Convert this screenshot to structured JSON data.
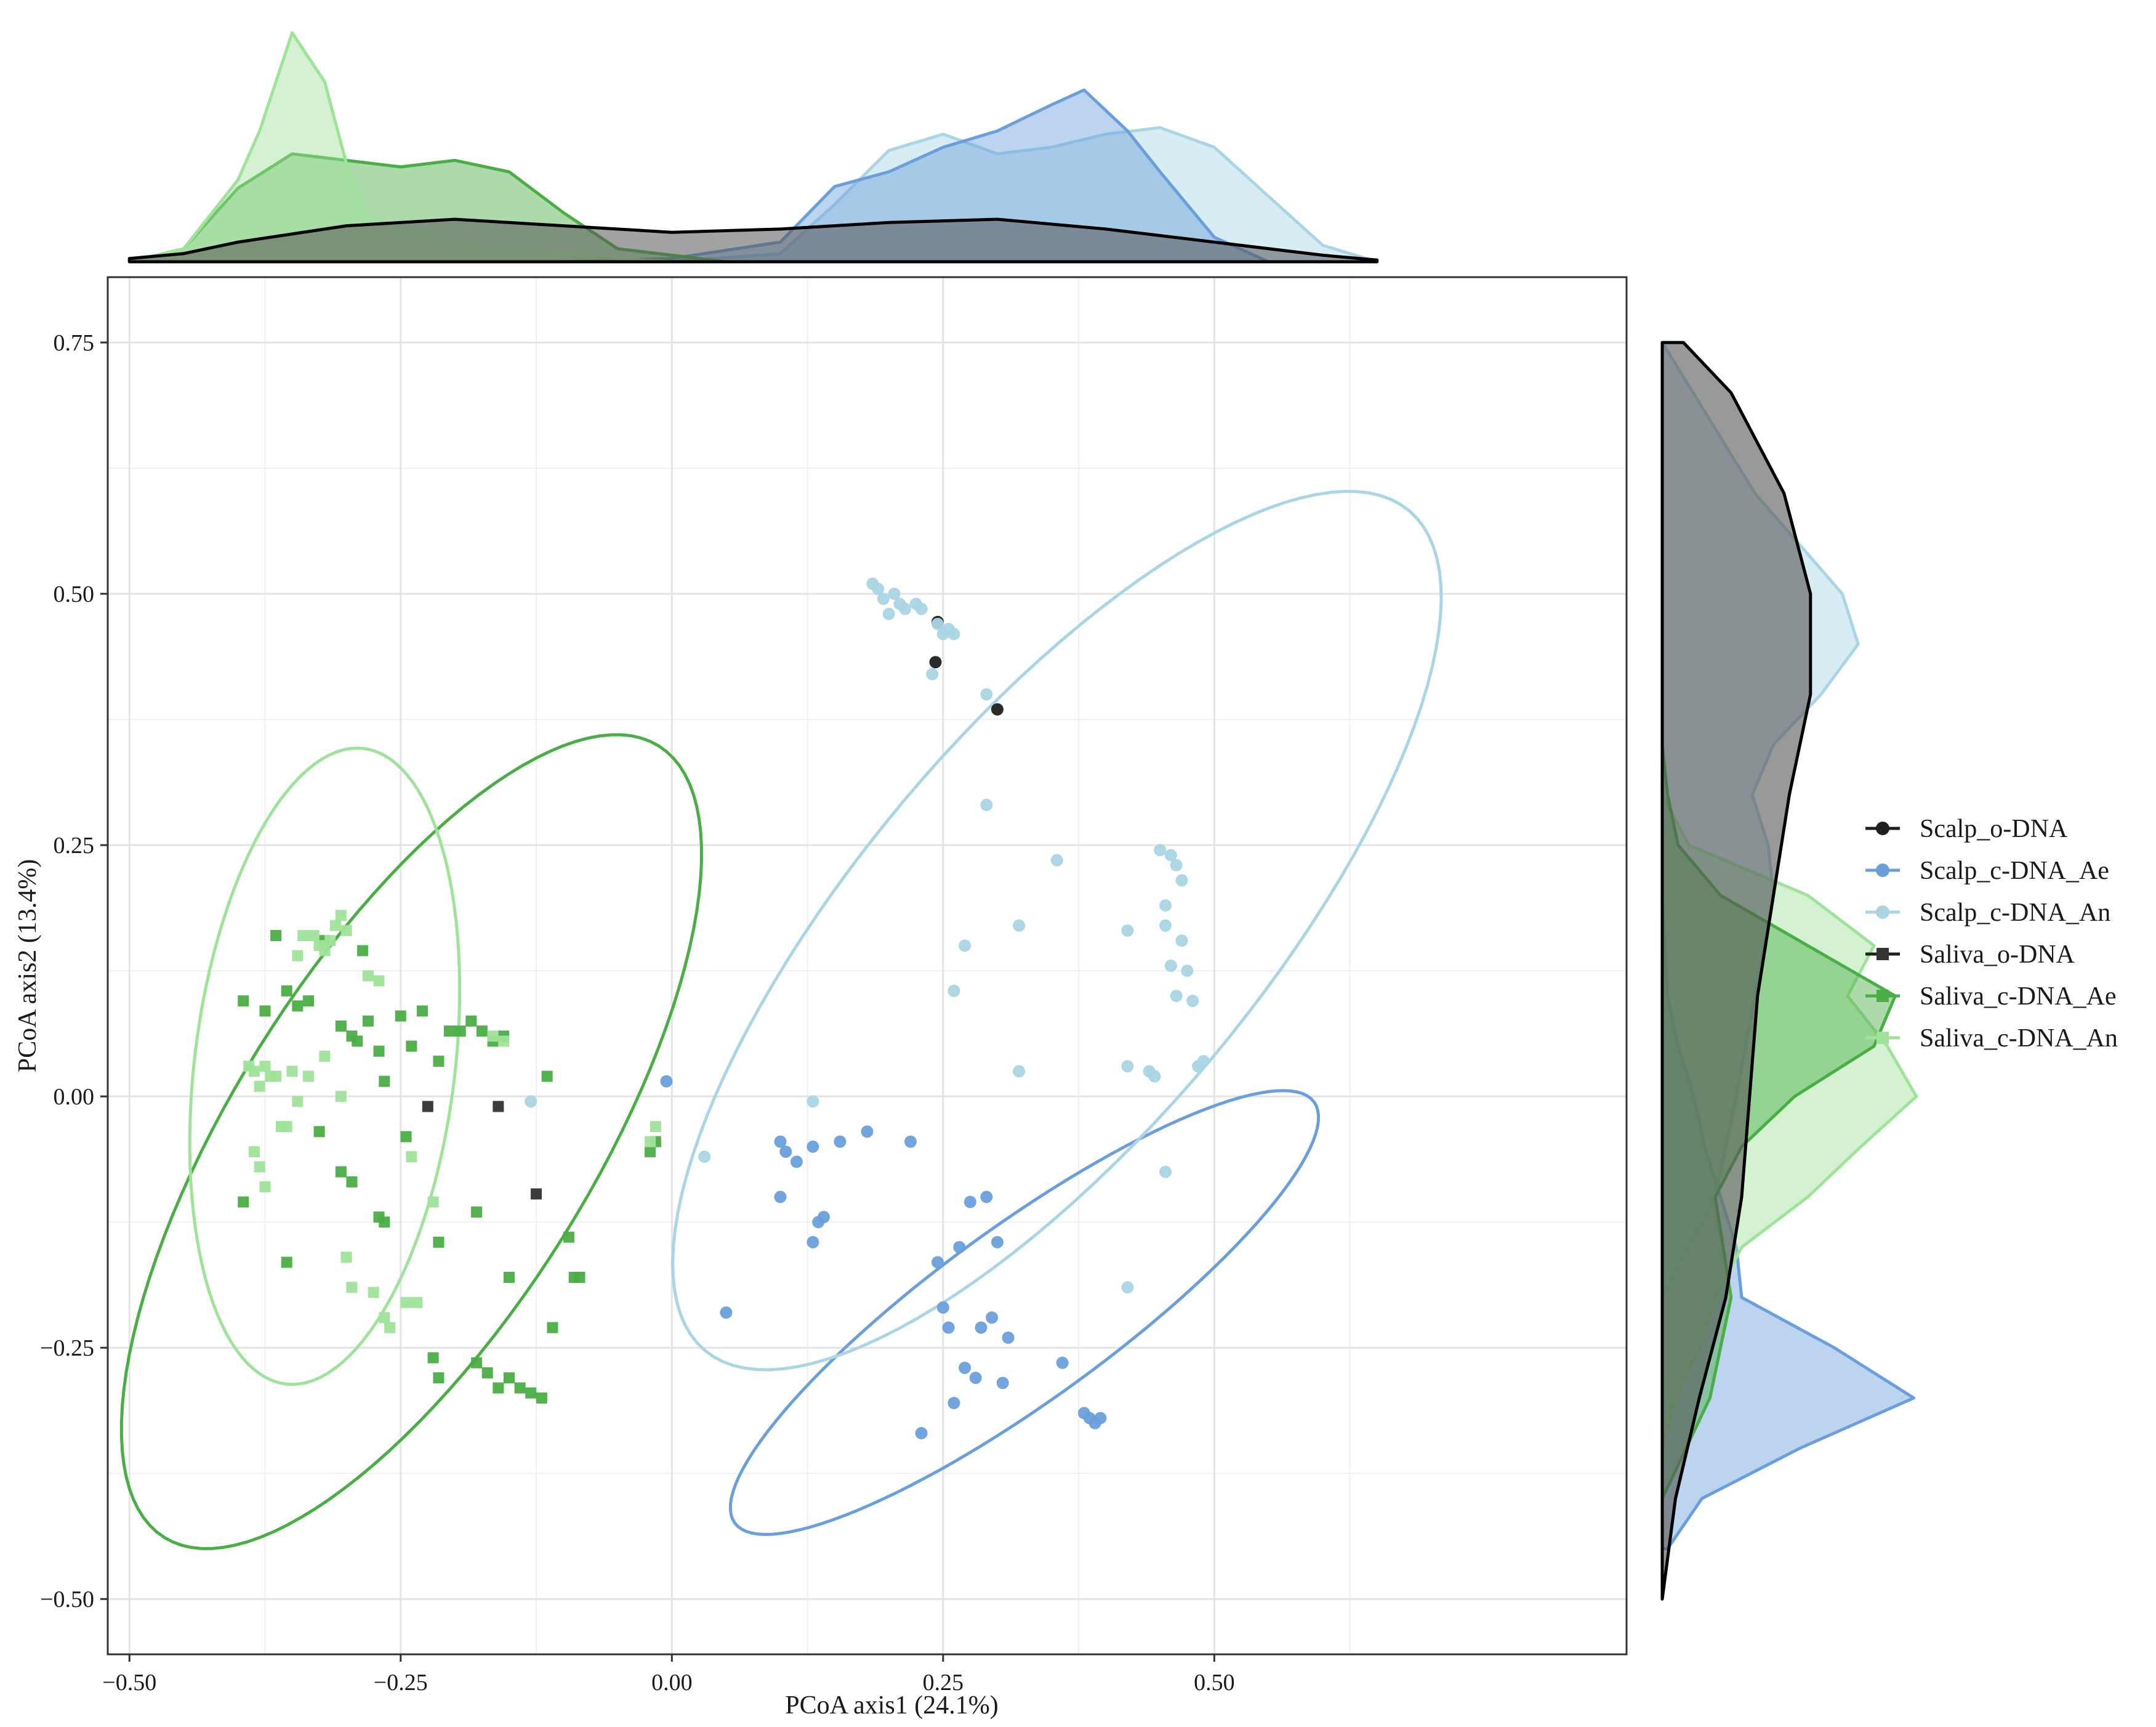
{
  "chart_data": {
    "type": "scatter",
    "title": "",
    "xlabel": "PCoA axis1 (24.1%)",
    "ylabel": "PCoA axis2 (13.4%)",
    "xlim": [
      -0.52,
      0.88
    ],
    "ylim": [
      -0.555,
      0.815
    ],
    "xticks": [
      -0.5,
      -0.25,
      0.0,
      0.25,
      0.5
    ],
    "xtick_labels": [
      "−0.50",
      "−0.25",
      "0.00",
      "0.25",
      "0.50"
    ],
    "yticks": [
      -0.5,
      -0.25,
      0.0,
      0.25,
      0.5,
      0.75
    ],
    "ytick_labels": [
      "−0.50",
      "−0.25",
      "0.00",
      "0.25",
      "0.50",
      "0.75"
    ],
    "grid": true,
    "legend_position": "right",
    "series": [
      {
        "name": "Scalp_o-DNA",
        "marker": "circle",
        "color": "#1f1f1f",
        "points": [
          [
            0.245,
            0.472
          ],
          [
            0.243,
            0.432
          ],
          [
            0.3,
            0.385
          ]
        ],
        "ellipse": null,
        "density_x": {
          "x": [
            -0.5,
            -0.45,
            -0.4,
            -0.3,
            -0.2,
            -0.1,
            0.0,
            0.1,
            0.2,
            0.3,
            0.4,
            0.5,
            0.6,
            0.65
          ],
          "y": [
            0.02,
            0.05,
            0.12,
            0.22,
            0.26,
            0.22,
            0.18,
            0.2,
            0.24,
            0.26,
            0.2,
            0.12,
            0.04,
            0.01
          ]
        },
        "density_y": {
          "y": [
            0.75,
            0.7,
            0.6,
            0.5,
            0.4,
            0.3,
            0.2,
            0.1,
            0.0,
            -0.1,
            -0.2,
            -0.3,
            -0.4,
            -0.5
          ],
          "d": [
            0.08,
            0.26,
            0.46,
            0.56,
            0.56,
            0.48,
            0.42,
            0.36,
            0.33,
            0.3,
            0.24,
            0.14,
            0.05,
            0.0
          ]
        }
      },
      {
        "name": "Scalp_c-DNA_Ae",
        "marker": "circle",
        "color": "#6a9fdb",
        "points": [
          [
            -0.005,
            0.015
          ],
          [
            0.05,
            -0.215
          ],
          [
            0.1,
            -0.045
          ],
          [
            0.105,
            -0.055
          ],
          [
            0.115,
            -0.065
          ],
          [
            0.1,
            -0.1
          ],
          [
            0.13,
            -0.05
          ],
          [
            0.14,
            -0.12
          ],
          [
            0.135,
            -0.125
          ],
          [
            0.13,
            -0.145
          ],
          [
            0.155,
            -0.045
          ],
          [
            0.18,
            -0.035
          ],
          [
            0.22,
            -0.045
          ],
          [
            0.245,
            -0.165
          ],
          [
            0.25,
            -0.21
          ],
          [
            0.255,
            -0.23
          ],
          [
            0.265,
            -0.15
          ],
          [
            0.27,
            -0.27
          ],
          [
            0.275,
            -0.105
          ],
          [
            0.28,
            -0.28
          ],
          [
            0.285,
            -0.23
          ],
          [
            0.29,
            -0.1
          ],
          [
            0.295,
            -0.22
          ],
          [
            0.3,
            -0.145
          ],
          [
            0.305,
            -0.285
          ],
          [
            0.31,
            -0.24
          ],
          [
            0.23,
            -0.335
          ],
          [
            0.26,
            -0.305
          ],
          [
            0.36,
            -0.265
          ],
          [
            0.38,
            -0.315
          ],
          [
            0.385,
            -0.32
          ],
          [
            0.39,
            -0.325
          ],
          [
            0.395,
            -0.32
          ]
        ],
        "ellipse": {
          "cx": 0.325,
          "cy": -0.215,
          "rx": 0.33,
          "ry": 0.08,
          "angle": -36
        },
        "density_x": {
          "x": [
            -0.1,
            0.0,
            0.1,
            0.15,
            0.2,
            0.25,
            0.3,
            0.35,
            0.38,
            0.42,
            0.45,
            0.5,
            0.55
          ],
          "y": [
            0.0,
            0.02,
            0.12,
            0.46,
            0.55,
            0.7,
            0.8,
            0.96,
            1.05,
            0.8,
            0.55,
            0.15,
            0.0
          ]
        },
        "density_y": {
          "y": [
            0.2,
            0.1,
            0.05,
            0.0,
            -0.05,
            -0.1,
            -0.15,
            -0.2,
            -0.25,
            -0.3,
            -0.35,
            -0.4,
            -0.45
          ],
          "d": [
            0.0,
            0.02,
            0.06,
            0.12,
            0.16,
            0.22,
            0.28,
            0.3,
            0.65,
            0.95,
            0.52,
            0.15,
            0.02
          ]
        }
      },
      {
        "name": "Scalp_c-DNA_An",
        "marker": "circle",
        "color": "#a9d5e4",
        "points": [
          [
            0.185,
            0.51
          ],
          [
            0.19,
            0.505
          ],
          [
            0.195,
            0.495
          ],
          [
            0.2,
            0.48
          ],
          [
            0.205,
            0.5
          ],
          [
            0.21,
            0.49
          ],
          [
            0.215,
            0.485
          ],
          [
            0.225,
            0.49
          ],
          [
            0.23,
            0.485
          ],
          [
            0.245,
            0.47
          ],
          [
            0.25,
            0.46
          ],
          [
            0.255,
            0.465
          ],
          [
            0.26,
            0.46
          ],
          [
            0.24,
            0.42
          ],
          [
            0.29,
            0.4
          ],
          [
            0.29,
            0.29
          ],
          [
            0.27,
            0.15
          ],
          [
            0.26,
            0.105
          ],
          [
            0.32,
            0.17
          ],
          [
            0.32,
            0.025
          ],
          [
            0.355,
            0.235
          ],
          [
            0.42,
            0.165
          ],
          [
            0.42,
            0.03
          ],
          [
            0.44,
            0.025
          ],
          [
            0.445,
            0.02
          ],
          [
            0.45,
            0.245
          ],
          [
            0.455,
            0.19
          ],
          [
            0.46,
            0.24
          ],
          [
            0.465,
            0.23
          ],
          [
            0.47,
            0.215
          ],
          [
            0.455,
            0.17
          ],
          [
            0.46,
            0.13
          ],
          [
            0.465,
            0.1
          ],
          [
            0.47,
            0.155
          ],
          [
            0.475,
            0.125
          ],
          [
            0.48,
            0.095
          ],
          [
            0.485,
            0.03
          ],
          [
            0.49,
            0.035
          ],
          [
            0.455,
            -0.075
          ],
          [
            0.42,
            -0.19
          ],
          [
            0.03,
            -0.06
          ],
          [
            -0.13,
            -0.005
          ],
          [
            0.13,
            -0.005
          ]
        ],
        "ellipse": {
          "cx": 0.355,
          "cy": 0.165,
          "rx": 0.505,
          "ry": 0.185,
          "angle": -50
        },
        "density_x": {
          "x": [
            0.0,
            0.1,
            0.15,
            0.2,
            0.25,
            0.3,
            0.35,
            0.4,
            0.45,
            0.5,
            0.55,
            0.6,
            0.65
          ],
          "y": [
            0.0,
            0.05,
            0.35,
            0.68,
            0.78,
            0.66,
            0.7,
            0.78,
            0.82,
            0.7,
            0.4,
            0.1,
            0.0
          ]
        },
        "density_y": {
          "y": [
            0.75,
            0.6,
            0.5,
            0.45,
            0.4,
            0.35,
            0.3,
            0.25,
            0.2,
            0.1,
            0.0,
            -0.1,
            -0.2
          ],
          "d": [
            0.0,
            0.35,
            0.68,
            0.74,
            0.6,
            0.42,
            0.34,
            0.4,
            0.42,
            0.35,
            0.28,
            0.2,
            0.0
          ]
        }
      },
      {
        "name": "Saliva_o-DNA",
        "marker": "square",
        "color": "#333333",
        "points": [
          [
            -0.225,
            -0.01
          ],
          [
            -0.16,
            -0.01
          ],
          [
            -0.125,
            -0.097
          ]
        ],
        "ellipse": null,
        "density_x": null,
        "density_y": null
      },
      {
        "name": "Saliva_c-DNA_Ae",
        "marker": "square",
        "color": "#4aad45",
        "points": [
          [
            -0.395,
            0.095
          ],
          [
            -0.375,
            0.085
          ],
          [
            -0.365,
            0.16
          ],
          [
            -0.355,
            0.105
          ],
          [
            -0.345,
            0.09
          ],
          [
            -0.335,
            0.095
          ],
          [
            -0.32,
            0.155
          ],
          [
            -0.305,
            0.07
          ],
          [
            -0.295,
            0.06
          ],
          [
            -0.29,
            0.055
          ],
          [
            -0.285,
            0.145
          ],
          [
            -0.28,
            0.075
          ],
          [
            -0.27,
            0.045
          ],
          [
            -0.265,
            0.015
          ],
          [
            -0.25,
            0.08
          ],
          [
            -0.24,
            0.05
          ],
          [
            -0.23,
            0.085
          ],
          [
            -0.215,
            0.035
          ],
          [
            -0.205,
            0.065
          ],
          [
            -0.195,
            0.065
          ],
          [
            -0.185,
            0.075
          ],
          [
            -0.175,
            0.065
          ],
          [
            -0.165,
            0.055
          ],
          [
            -0.155,
            0.06
          ],
          [
            -0.115,
            0.02
          ],
          [
            -0.325,
            -0.035
          ],
          [
            -0.305,
            -0.075
          ],
          [
            -0.295,
            -0.085
          ],
          [
            -0.27,
            -0.12
          ],
          [
            -0.265,
            -0.125
          ],
          [
            -0.245,
            -0.04
          ],
          [
            -0.215,
            -0.145
          ],
          [
            -0.22,
            -0.26
          ],
          [
            -0.215,
            -0.28
          ],
          [
            -0.18,
            -0.265
          ],
          [
            -0.17,
            -0.275
          ],
          [
            -0.16,
            -0.29
          ],
          [
            -0.15,
            -0.28
          ],
          [
            -0.14,
            -0.29
          ],
          [
            -0.13,
            -0.295
          ],
          [
            -0.12,
            -0.3
          ],
          [
            -0.11,
            -0.23
          ],
          [
            -0.095,
            -0.14
          ],
          [
            -0.085,
            -0.18
          ],
          [
            -0.09,
            -0.18
          ],
          [
            -0.15,
            -0.18
          ],
          [
            -0.18,
            -0.115
          ],
          [
            -0.355,
            -0.165
          ],
          [
            -0.395,
            -0.105
          ],
          [
            -0.015,
            -0.045
          ],
          [
            -0.02,
            -0.055
          ]
        ],
        "ellipse": {
          "cx": -0.24,
          "cy": -0.045,
          "rx": 0.43,
          "ry": 0.165,
          "angle": -58
        },
        "density_x": {
          "x": [
            -0.5,
            -0.45,
            -0.4,
            -0.35,
            -0.3,
            -0.25,
            -0.2,
            -0.15,
            -0.1,
            -0.05,
            0.0,
            0.05
          ],
          "y": [
            0.0,
            0.08,
            0.45,
            0.66,
            0.62,
            0.58,
            0.62,
            0.55,
            0.3,
            0.08,
            0.04,
            0.0
          ]
        },
        "density_y": {
          "y": [
            0.35,
            0.3,
            0.25,
            0.2,
            0.15,
            0.1,
            0.05,
            0.0,
            -0.05,
            -0.1,
            -0.2,
            -0.3,
            -0.4
          ],
          "d": [
            0.0,
            0.02,
            0.06,
            0.22,
            0.55,
            0.88,
            0.8,
            0.5,
            0.3,
            0.2,
            0.26,
            0.18,
            0.0
          ]
        }
      },
      {
        "name": "Saliva_c-DNA_An",
        "marker": "square",
        "color": "#9fe39a",
        "points": [
          [
            -0.39,
            0.03
          ],
          [
            -0.385,
            0.025
          ],
          [
            -0.38,
            0.01
          ],
          [
            -0.375,
            0.03
          ],
          [
            -0.37,
            0.02
          ],
          [
            -0.365,
            0.02
          ],
          [
            -0.36,
            -0.03
          ],
          [
            -0.355,
            -0.03
          ],
          [
            -0.345,
            -0.005
          ],
          [
            -0.345,
            0.14
          ],
          [
            -0.34,
            0.16
          ],
          [
            -0.33,
            0.16
          ],
          [
            -0.325,
            0.15
          ],
          [
            -0.32,
            0.145
          ],
          [
            -0.315,
            0.155
          ],
          [
            -0.31,
            0.17
          ],
          [
            -0.305,
            0.18
          ],
          [
            -0.3,
            0.165
          ],
          [
            -0.35,
            0.025
          ],
          [
            -0.335,
            0.02
          ],
          [
            -0.32,
            0.04
          ],
          [
            -0.305,
            0.0
          ],
          [
            -0.28,
            0.12
          ],
          [
            -0.27,
            0.115
          ],
          [
            -0.385,
            -0.055
          ],
          [
            -0.38,
            -0.07
          ],
          [
            -0.375,
            -0.09
          ],
          [
            -0.3,
            -0.16
          ],
          [
            -0.295,
            -0.19
          ],
          [
            -0.275,
            -0.195
          ],
          [
            -0.265,
            -0.22
          ],
          [
            -0.26,
            -0.23
          ],
          [
            -0.245,
            -0.205
          ],
          [
            -0.235,
            -0.205
          ],
          [
            -0.24,
            -0.06
          ],
          [
            -0.22,
            -0.105
          ],
          [
            -0.165,
            0.06
          ],
          [
            -0.155,
            0.055
          ],
          [
            -0.015,
            -0.03
          ],
          [
            -0.02,
            -0.045
          ]
        ],
        "ellipse": {
          "cx": -0.32,
          "cy": 0.03,
          "rx": 0.295,
          "ry": 0.12,
          "angle": -83
        },
        "density_x": {
          "x": [
            -0.5,
            -0.45,
            -0.4,
            -0.38,
            -0.35,
            -0.32,
            -0.3,
            -0.28,
            -0.25,
            -0.2,
            -0.15,
            -0.1,
            -0.05,
            0.0
          ],
          "y": [
            0.0,
            0.08,
            0.5,
            0.8,
            1.4,
            1.1,
            0.6,
            0.25,
            0.22,
            0.12,
            0.08,
            0.05,
            0.02,
            0.0
          ]
        },
        "density_y": {
          "y": [
            0.3,
            0.25,
            0.2,
            0.15,
            0.1,
            0.05,
            0.0,
            -0.05,
            -0.1,
            -0.15,
            -0.2,
            -0.25,
            -0.3,
            -0.35
          ],
          "d": [
            0.0,
            0.1,
            0.55,
            0.8,
            0.7,
            0.85,
            0.96,
            0.75,
            0.55,
            0.3,
            0.2,
            0.14,
            0.05,
            0.0
          ]
        }
      }
    ]
  }
}
